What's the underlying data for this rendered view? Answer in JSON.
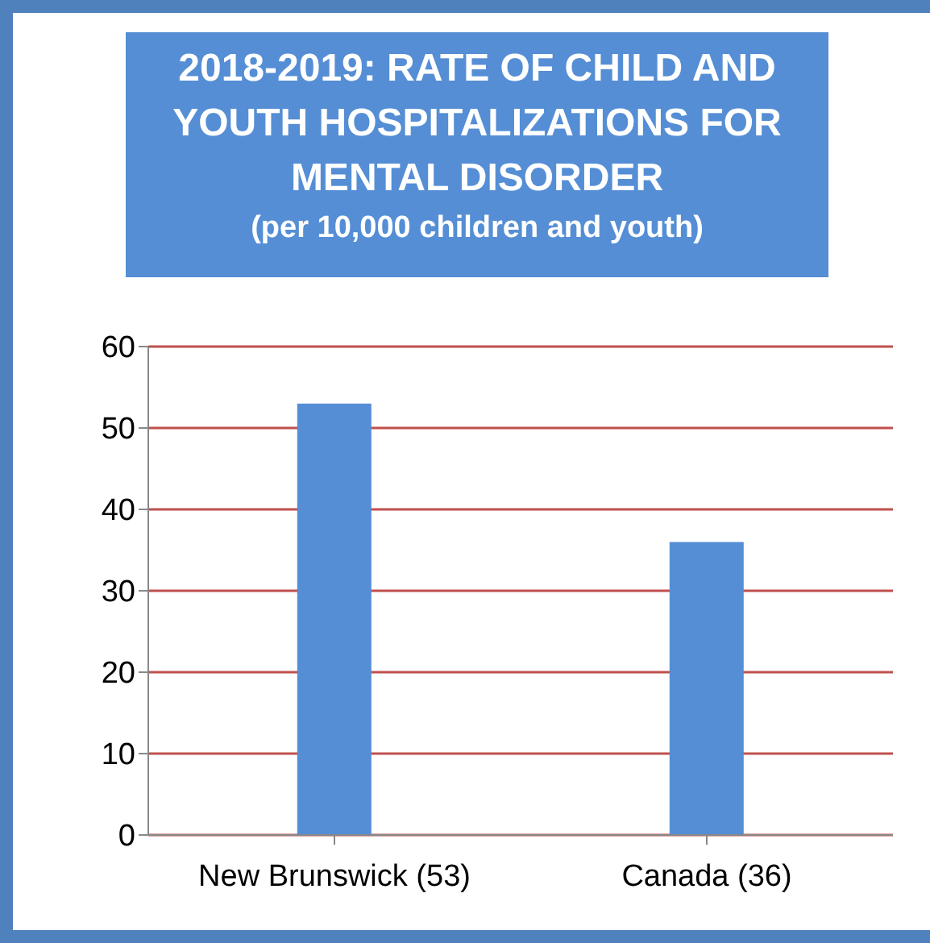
{
  "chart_data": {
    "type": "bar",
    "title": "2018-2019: RATE OF CHILD AND YOUTH HOSPITALIZATIONS FOR MENTAL DISORDER",
    "subtitle": "(per 10,000 children and youth)",
    "categories": [
      "New Brunswick (53)",
      "Canada (36)"
    ],
    "values": [
      53,
      36
    ],
    "color": "#558ed5",
    "ylim": [
      0,
      60
    ],
    "yticks": [
      0,
      10,
      20,
      30,
      40,
      50,
      60
    ],
    "grid": "y"
  }
}
